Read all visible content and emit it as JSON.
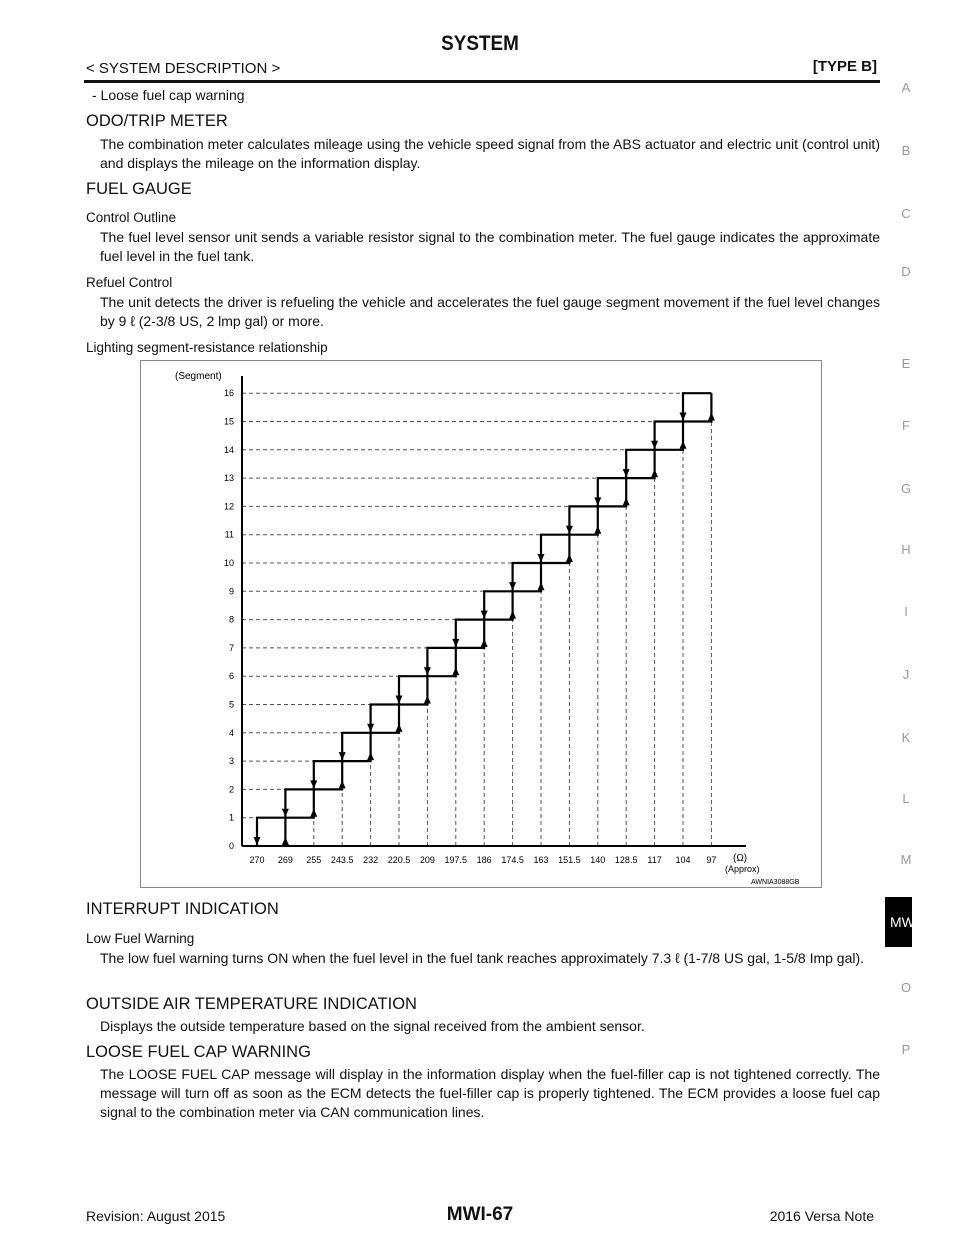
{
  "header": {
    "title": "SYSTEM",
    "section": "< SYSTEM DESCRIPTION >",
    "type": "[TYPE B]"
  },
  "intro_item": "-  Loose fuel cap warning",
  "sections": {
    "odo": {
      "heading": "ODO/TRIP METER",
      "text": "The combination meter calculates mileage using the vehicle speed signal from the ABS actuator and electric unit (control unit) and displays the mileage on the information display."
    },
    "fuel": {
      "heading": "FUEL GAUGE",
      "control_outline": {
        "heading": "Control Outline",
        "text": "The fuel level sensor unit sends a variable resistor signal to the combination meter. The fuel gauge indicates the approximate fuel level in the fuel tank."
      },
      "refuel": {
        "heading": "Refuel Control",
        "text": "The unit detects the driver is refueling the vehicle and accelerates the fuel gauge segment movement if the fuel level changes by 9 ℓ (2-3/8 US, 2 lmp gal) or more."
      },
      "chart_caption": "Lighting segment-resistance relationship"
    },
    "interrupt": {
      "heading": "INTERRUPT INDICATION",
      "low_fuel": {
        "heading": "Low Fuel Warning",
        "text": "The low fuel warning turns ON when the fuel level in the fuel tank reaches approximately 7.3 ℓ (1-7/8 US gal, 1-5/8 Imp gal)."
      }
    },
    "outside_air": {
      "heading": "OUTSIDE AIR TEMPERATURE INDICATION",
      "text": "Displays the outside temperature based on the signal received from the ambient sensor."
    },
    "loose_cap": {
      "heading": "LOOSE FUEL CAP WARNING",
      "text": "The LOOSE FUEL CAP message will display in the information display when the fuel-filler cap is not tightened correctly. The message will turn off as soon as the ECM detects the fuel-filler cap is properly tightened. The ECM provides a loose fuel cap signal to the combination meter via CAN communication lines."
    }
  },
  "side_index": [
    "A",
    "B",
    "C",
    "D",
    "E",
    "F",
    "G",
    "H",
    "I",
    "J",
    "K",
    "L",
    "M",
    "MWI",
    "O",
    "P"
  ],
  "side_index_active": "MWI",
  "footer": {
    "revision": "Revision: August 2015",
    "page": "MWI-67",
    "model": "2016 Versa Note"
  },
  "chart_data": {
    "type": "line",
    "ylabel": "(Segment)",
    "xlabel_unit": "(Ω)",
    "xlabel_note": "(Approx)",
    "figure_id": "AWNIA3088GB",
    "x": [
      "270",
      "269",
      "255",
      "243.5",
      "232",
      "220.5",
      "209",
      "197.5",
      "186",
      "174.5",
      "163",
      "151.5",
      "140",
      "128.5",
      "117",
      "104",
      "97"
    ],
    "y_ticks": [
      0,
      1,
      2,
      3,
      4,
      5,
      6,
      7,
      8,
      9,
      10,
      11,
      12,
      13,
      14,
      15,
      16
    ],
    "ylim": [
      0,
      16
    ],
    "grid": "dashed",
    "series": [
      {
        "direction": "down",
        "segment_at_x": [
          1,
          2,
          3,
          4,
          5,
          6,
          7,
          8,
          9,
          10,
          11,
          12,
          13,
          14,
          15,
          16,
          16
        ]
      },
      {
        "direction": "up",
        "segment_at_x": [
          0,
          1,
          2,
          3,
          4,
          5,
          6,
          7,
          8,
          9,
          10,
          11,
          12,
          13,
          14,
          15,
          16
        ]
      }
    ]
  }
}
